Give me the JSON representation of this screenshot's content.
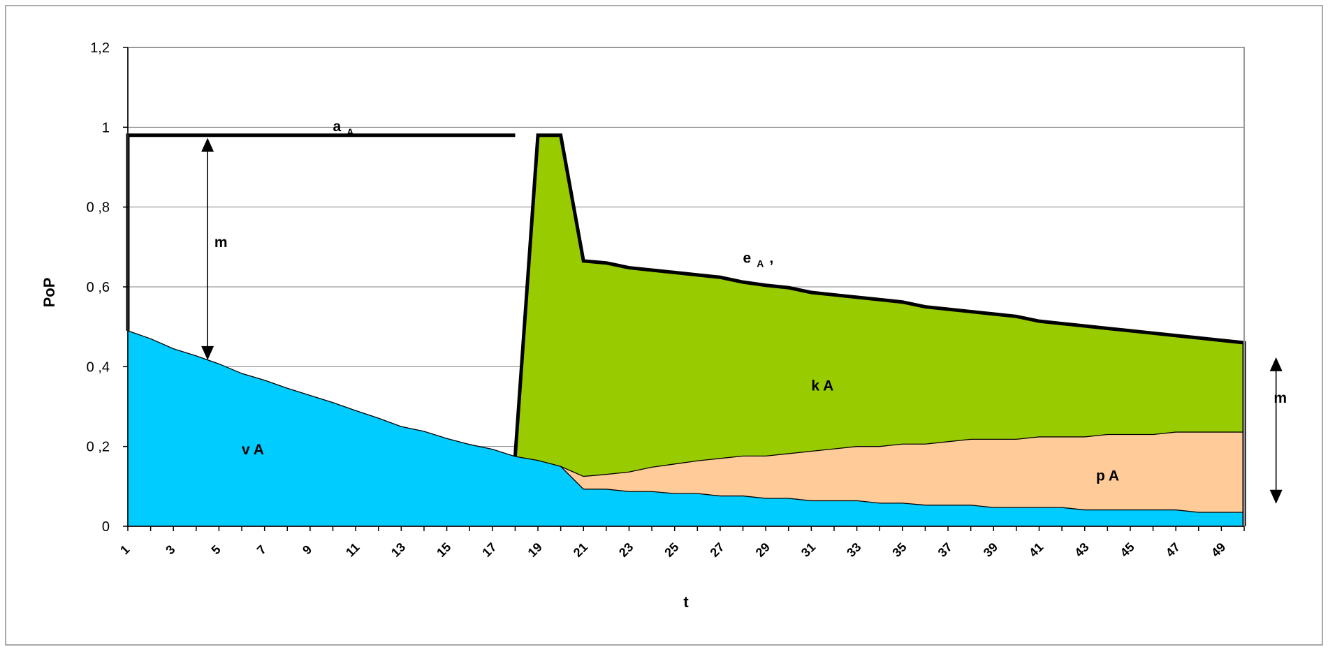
{
  "chart_data": {
    "type": "area",
    "xlabel": "t",
    "ylabel": "PoP",
    "ylim": [
      0,
      1.2
    ],
    "y_ticks": [
      "0",
      "0 ,2",
      "0 ,4",
      "0 ,6",
      "0 ,8",
      "1",
      "1,2"
    ],
    "y_tick_values": [
      0,
      0.2,
      0.4,
      0.6,
      0.8,
      1.0,
      1.2
    ],
    "grid": "horizontal",
    "legend": "none",
    "x": [
      1,
      2,
      3,
      4,
      5,
      6,
      7,
      8,
      9,
      10,
      11,
      12,
      13,
      14,
      15,
      16,
      17,
      18,
      19,
      20,
      21,
      22,
      23,
      24,
      25,
      26,
      27,
      28,
      29,
      30,
      31,
      32,
      33,
      34,
      35,
      36,
      37,
      38,
      39,
      40,
      41,
      42,
      43,
      44,
      45,
      46,
      47,
      48,
      49,
      50
    ],
    "x_tick_labels": [
      "1",
      "3",
      "5",
      "7",
      "9",
      "11",
      "13",
      "15",
      "17",
      "19",
      "21",
      "23",
      "25",
      "27",
      "29",
      "31",
      "33",
      "35",
      "37",
      "39",
      "41",
      "43",
      "45",
      "47",
      "49"
    ],
    "series": [
      {
        "key": "blue",
        "color": "#00ccff",
        "values": [
          0.49,
          0.47,
          0.445,
          0.427,
          0.407,
          0.383,
          0.366,
          0.346,
          0.328,
          0.31,
          0.29,
          0.271,
          0.25,
          0.238,
          0.22,
          0.205,
          0.193,
          0.175,
          0.165,
          0.15,
          0.093,
          0.093,
          0.087,
          0.087,
          0.082,
          0.082,
          0.076,
          0.076,
          0.07,
          0.07,
          0.064,
          0.064,
          0.064,
          0.058,
          0.058,
          0.053,
          0.053,
          0.053,
          0.047,
          0.047,
          0.047,
          0.047,
          0.041,
          0.041,
          0.041,
          0.041,
          0.041,
          0.035,
          0.035,
          0.035
        ]
      },
      {
        "key": "orange",
        "color": "#ffcc99",
        "values": [
          null,
          null,
          null,
          null,
          null,
          null,
          null,
          null,
          null,
          null,
          null,
          null,
          null,
          null,
          null,
          null,
          null,
          null,
          null,
          null,
          0.125,
          0.13,
          0.136,
          0.148,
          0.156,
          0.164,
          0.17,
          0.176,
          0.176,
          0.182,
          0.188,
          0.194,
          0.2,
          0.2,
          0.206,
          0.206,
          0.212,
          0.218,
          0.218,
          0.218,
          0.224,
          0.224,
          0.224,
          0.23,
          0.23,
          0.23,
          0.236,
          0.236,
          0.236,
          0.236
        ]
      },
      {
        "key": "green",
        "color": "#99cc00",
        "values": [
          null,
          null,
          null,
          null,
          null,
          null,
          null,
          null,
          null,
          null,
          null,
          null,
          null,
          null,
          null,
          null,
          null,
          0.175,
          0.98,
          0.98,
          0.665,
          0.66,
          0.648,
          0.642,
          0.636,
          0.63,
          0.624,
          0.612,
          0.604,
          0.598,
          0.586,
          0.58,
          0.574,
          0.568,
          0.562,
          0.55,
          0.544,
          0.538,
          0.532,
          0.526,
          0.514,
          0.508,
          0.502,
          0.496,
          0.49,
          0.484,
          0.478,
          0.472,
          0.466,
          0.46
        ]
      }
    ],
    "top_line": {
      "color": "#000000",
      "values": [
        0.98,
        0.98,
        0.98,
        0.98,
        0.98,
        0.98,
        0.98,
        0.98,
        0.98,
        0.98,
        0.98,
        0.98,
        0.98,
        0.98,
        0.98,
        0.98,
        0.98,
        0.98,
        0.98,
        0.98
      ]
    },
    "annotations": [
      {
        "key": "a",
        "text": "a",
        "sub": "A",
        "x": 10,
        "y": 0.99
      },
      {
        "key": "e",
        "text": "e",
        "sub": "A",
        "suffix": ",",
        "x": 28,
        "y": 0.66
      },
      {
        "key": "k",
        "text": "k A",
        "x": 31,
        "y": 0.34
      },
      {
        "key": "v",
        "text": "v A",
        "x": 6,
        "y": 0.18
      },
      {
        "key": "p",
        "text": "p A",
        "x": 43.5,
        "y": 0.115
      },
      {
        "key": "m_left",
        "text": "m",
        "x": 4.8,
        "y": 0.7
      },
      {
        "key": "m_right",
        "text": "m",
        "x": 51.3,
        "y": 0.31
      }
    ],
    "arrows": [
      {
        "key": "left",
        "x": 4.5,
        "y_from": 0.97,
        "y_to": 0.42
      },
      {
        "key": "right",
        "x": 51.4,
        "y_from": 0.42,
        "y_to": 0.06
      }
    ]
  }
}
